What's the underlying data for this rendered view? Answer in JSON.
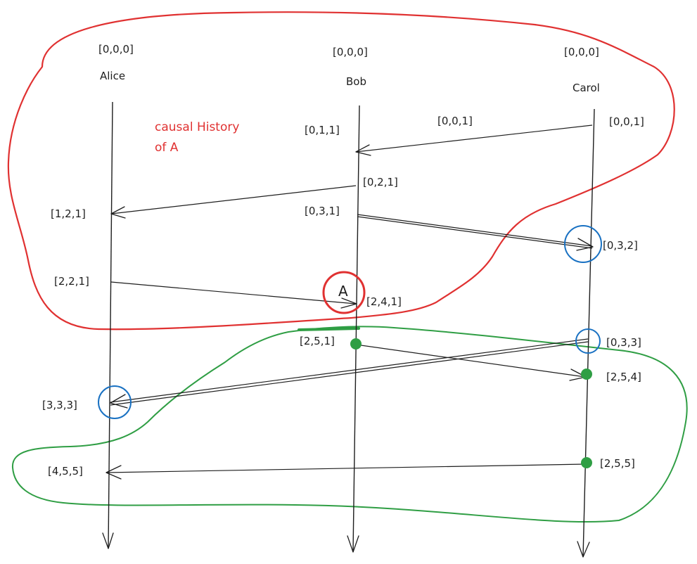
{
  "processes": [
    {
      "name": "Alice",
      "initial": "[0,0,0]"
    },
    {
      "name": "Bob",
      "initial": "[0,0,0]"
    },
    {
      "name": "Carol",
      "initial": "[0,0,0]"
    }
  ],
  "events": {
    "carol_send_1": "[0,0,1]",
    "msg_label_1": "[0,0,1]",
    "bob_recv_1": "[0,1,1]",
    "bob_send_2": "[0,2,1]",
    "alice_recv_2": "[1,2,1]",
    "bob_send_3": "[0,3,1]",
    "carol_recv_3": "[0,3,2]",
    "alice_send_4": "[2,2,1]",
    "bob_recv_4": "[2,4,1]",
    "bob_send_5": "[2,5,1]",
    "carol_send_6": "[0,3,3]",
    "carol_recv_5": "[2,5,4]",
    "alice_recv_6": "[3,3,3]",
    "carol_send_7": "[2,5,5]",
    "alice_recv_7": "[4,5,5]"
  },
  "annotations": {
    "causal_history_line1": "causal History",
    "causal_history_line2": "of A",
    "event_a": "A"
  },
  "colors": {
    "ink": "#1e1e1e",
    "causal_history": "#e03131",
    "concurrent_markers": "#1971c2",
    "future_region": "#2f9e44"
  }
}
